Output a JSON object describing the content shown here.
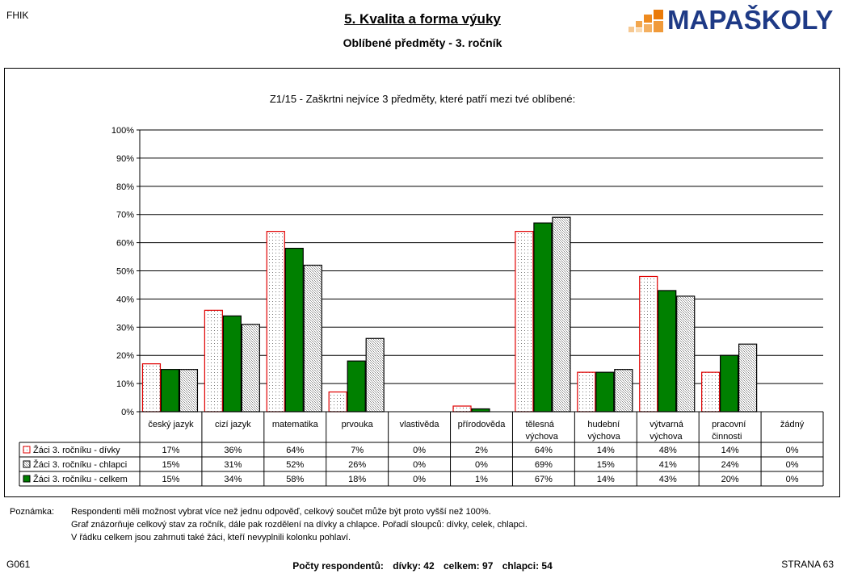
{
  "header": {
    "code": "FHIK",
    "title": "5. Kvalita a forma výuky",
    "subtitle": "Oblíbené předměty - 3. ročník",
    "logo_text": "MAPAŠKOLY"
  },
  "chart_data": {
    "type": "bar",
    "title": "Z1/15 - Zaškrtni nejvíce 3 předměty, které patří mezi tvé oblíbené:",
    "categories": [
      "český jazyk",
      "cizí jazyk",
      "matematika",
      "prvouka",
      "vlastivěda",
      "přírodověda",
      "tělesná výchova",
      "hudební výchova",
      "výtvarná výchova",
      "pracovní činnosti",
      "žádný"
    ],
    "category_lines": [
      [
        "český jazyk"
      ],
      [
        "cizí jazyk"
      ],
      [
        "matematika"
      ],
      [
        "prvouka"
      ],
      [
        "vlastivěda"
      ],
      [
        "přírodověda"
      ],
      [
        "tělesná",
        "výchova"
      ],
      [
        "hudební",
        "výchova"
      ],
      [
        "výtvarná",
        "výchova"
      ],
      [
        "pracovní",
        "činnosti"
      ],
      [
        "žádný"
      ]
    ],
    "series": [
      {
        "name": "Žáci 3. ročníku - dívky",
        "values": [
          17,
          36,
          64,
          7,
          0,
          2,
          64,
          14,
          48,
          14,
          0
        ],
        "labels": [
          "17%",
          "36%",
          "64%",
          "7%",
          "0%",
          "2%",
          "64%",
          "14%",
          "48%",
          "14%",
          "0%"
        ],
        "style": "dotted-red",
        "color": "#e00000"
      },
      {
        "name": "Žáci 3. ročníku - celkem",
        "values": [
          15,
          34,
          58,
          18,
          0,
          1,
          67,
          14,
          43,
          20,
          0
        ],
        "labels": [
          "15%",
          "34%",
          "58%",
          "18%",
          "0%",
          "1%",
          "67%",
          "14%",
          "43%",
          "20%",
          "0%"
        ],
        "style": "solid-green",
        "color": "#008000"
      },
      {
        "name": "Žáci 3. ročníku - chlapci",
        "values": [
          15,
          31,
          52,
          26,
          0,
          0,
          69,
          15,
          41,
          24,
          0
        ],
        "labels": [
          "15%",
          "31%",
          "52%",
          "26%",
          "0%",
          "0%",
          "69%",
          "15%",
          "41%",
          "24%",
          "0%"
        ],
        "style": "hatched-gray",
        "color": "#808080"
      }
    ],
    "table_order": [
      0,
      2,
      1
    ],
    "yticks": [
      "0%",
      "10%",
      "20%",
      "30%",
      "40%",
      "50%",
      "60%",
      "70%",
      "80%",
      "90%",
      "100%"
    ],
    "ylim": [
      0,
      100
    ],
    "grid": true,
    "legend": "data table below chart"
  },
  "notes": {
    "label": "Poznámka:",
    "lines": [
      "Respondenti měli možnost vybrat více než jednu odpověď, celkový součet může být proto vyšší než 100%.",
      "Graf znázorňuje celkový stav za ročník, dále pak rozdělení na dívky a chlapce. Pořadí sloupců: dívky, celek, chlapci.",
      "V řádku celkem jsou zahrnuti také žáci, kteří nevyplnili kolonku pohlaví."
    ]
  },
  "footer": {
    "code": "G061",
    "respondents_label": "Počty respondentů:",
    "girls": "dívky: 42",
    "total": "celkem: 97",
    "boys": "chlapci: 54",
    "page": "STRANA 63"
  }
}
